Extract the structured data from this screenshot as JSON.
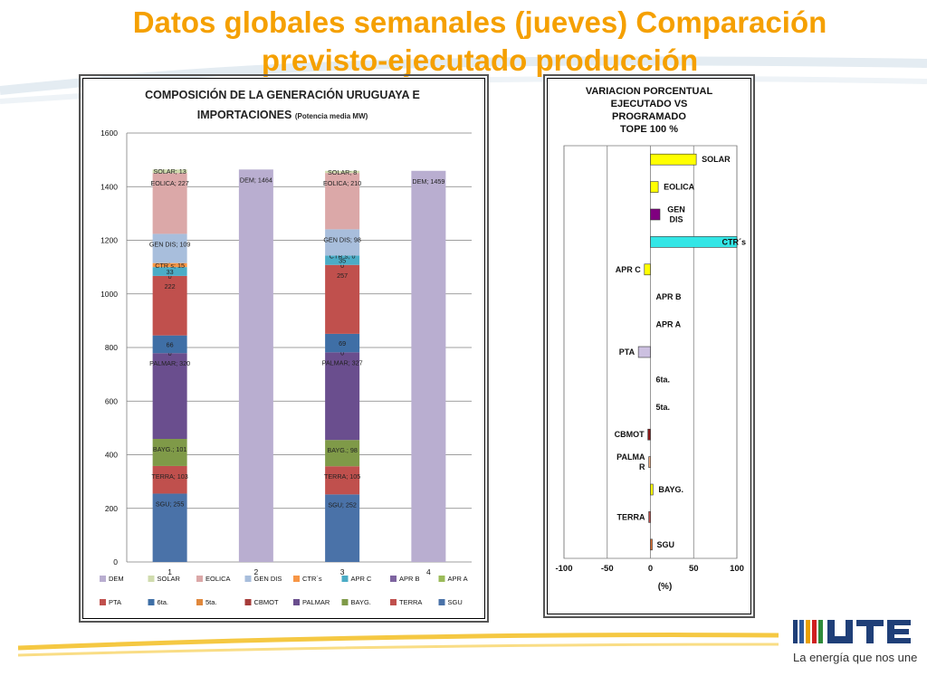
{
  "page": {
    "title_line1": "Datos globales semanales  (jueves) Comparación",
    "title_line2": "previsto-ejecutado producción",
    "slogan": "La energía que nos une",
    "colors": {
      "title": "#f5a000",
      "accent_line": "#f5c842"
    }
  },
  "chart_data": [
    {
      "type": "bar",
      "stacked": true,
      "title": "COMPOSICIÓN DE LA GENERACIÓN URUGUAYA E IMPORTACIONES",
      "title_line1": "COMPOSICIÓN DE LA GENERACIÓN URUGUAYA E",
      "title_line2": "IMPORTACIONES",
      "subtitle": "(Potencia media MW)",
      "categories": [
        "1",
        "2",
        "3",
        "4"
      ],
      "ylim": [
        0,
        1600
      ],
      "yticks": [
        "0",
        "200",
        "400",
        "600",
        "800",
        "1000",
        "1200",
        "1400",
        "1600"
      ],
      "ytick_values": [
        0,
        200,
        400,
        600,
        800,
        1000,
        1200,
        1400,
        1600
      ],
      "grid": true,
      "legend_position": "bottom",
      "series": [
        {
          "name": "SGU",
          "color": "#4a72a8",
          "values": [
            255,
            0,
            252,
            0
          ],
          "labels": [
            "SGU; 255",
            "",
            "SGU; 252",
            ""
          ]
        },
        {
          "name": "TERRA",
          "color": "#c0504d",
          "values": [
            103,
            0,
            105,
            0
          ],
          "labels": [
            "TERRA; 103",
            "",
            "TERRA; 105",
            ""
          ]
        },
        {
          "name": "BAYG.",
          "color": "#7f9a48",
          "values": [
            101,
            0,
            98,
            0
          ],
          "labels": [
            "BAYG.; 101",
            "",
            "BAYG.; 98",
            ""
          ]
        },
        {
          "name": "PALMAR",
          "color": "#6a4e8e",
          "values": [
            320,
            0,
            327,
            0
          ],
          "labels": [
            "PALMAR; 320",
            "",
            "PALMAR; 327",
            ""
          ]
        },
        {
          "name": "CBMOT",
          "color": "#a63c3a",
          "values": [
            0,
            0,
            0,
            0
          ],
          "labels": [
            "0",
            "",
            "0",
            ""
          ]
        },
        {
          "name": "5ta.",
          "color": "#e0883c",
          "values": [
            0,
            0,
            0,
            0
          ],
          "labels": [
            "",
            "",
            "",
            ""
          ]
        },
        {
          "name": "6ta.",
          "color": "#3f6fa6",
          "values": [
            66,
            0,
            69,
            0
          ],
          "labels": [
            "66",
            "",
            "69",
            ""
          ]
        },
        {
          "name": "PTA",
          "color": "#c0504d",
          "values": [
            222,
            0,
            257,
            0
          ],
          "labels": [
            "222",
            "",
            "257",
            ""
          ]
        },
        {
          "name": "APR A",
          "color": "#9bbb59",
          "values": [
            0,
            0,
            0,
            0
          ],
          "labels": [
            "0",
            "",
            "0",
            ""
          ]
        },
        {
          "name": "APR B",
          "color": "#7e64a0",
          "values": [
            0,
            0,
            0,
            0
          ],
          "labels": [
            "",
            "",
            "",
            ""
          ]
        },
        {
          "name": "APR C",
          "color": "#4bacc6",
          "values": [
            33,
            0,
            35,
            0
          ],
          "labels": [
            "33",
            "",
            "35",
            ""
          ]
        },
        {
          "name": "CTR´s",
          "color": "#f79646",
          "values": [
            15,
            0,
            0,
            0
          ],
          "labels": [
            "CTR´s; 15",
            "",
            "CTR´s; 0",
            ""
          ]
        },
        {
          "name": "GEN DIS",
          "color": "#a8bedc",
          "values": [
            109,
            0,
            98,
            0
          ],
          "labels": [
            "GEN DIS; 109",
            "",
            "GEN DIS; 98",
            ""
          ]
        },
        {
          "name": "EOLICA",
          "color": "#dba8a8",
          "values": [
            227,
            0,
            210,
            0
          ],
          "labels": [
            "EOLICA; 227",
            "",
            "EOLICA; 210",
            ""
          ]
        },
        {
          "name": "SOLAR",
          "color": "#d0dcae",
          "values": [
            13,
            0,
            8,
            0
          ],
          "labels": [
            "SOLAR; 13",
            "",
            "SOLAR; 8",
            ""
          ]
        },
        {
          "name": "DEM",
          "color": "#b9aed0",
          "values": [
            0,
            1464,
            0,
            1459
          ],
          "labels": [
            "",
            "DEM; 1464",
            "",
            "DEM; 1459"
          ]
        }
      ],
      "legend": [
        "DEM",
        "SOLAR",
        "EOLICA",
        "GEN DIS",
        "CTR´s",
        "APR C",
        "APR B",
        "APR A",
        "PTA",
        "6ta.",
        "5ta.",
        "CBMOT",
        "PALMAR",
        "BAYG.",
        "TERRA",
        "SGU"
      ]
    },
    {
      "type": "bar",
      "orientation": "horizontal",
      "title": "VARIACION PORCENTUAL EJECUTADO VS PROGRAMADO TOPE 100 %",
      "title_lines": [
        "VARIACION PORCENTUAL",
        "EJECUTADO VS",
        "PROGRAMADO",
        "TOPE 100 %"
      ],
      "xlabel": "(%)",
      "xlim": [
        -100,
        100
      ],
      "xticks": [
        "-100",
        "-50",
        "0",
        "50",
        "100"
      ],
      "xtick_values": [
        -100,
        -50,
        0,
        50,
        100
      ],
      "grid": true,
      "categories": [
        "SOLAR",
        "EOLICA",
        "GEN DIS",
        "CTR´s",
        "APR C",
        "APR B",
        "APR A",
        "PTA",
        "6ta.",
        "5ta.",
        "CBMOT",
        "PALMAR",
        "BAYG.",
        "TERRA",
        "SGU"
      ],
      "values": [
        53,
        9,
        11,
        100,
        -7,
        0,
        0,
        -14,
        0,
        0,
        -3,
        -2,
        3,
        -2,
        1
      ],
      "colors": [
        "#ffff00",
        "#ffff00",
        "#800080",
        "#33e6e6",
        "#ffff00",
        "#b0b0b0",
        "#b0b0b0",
        "#ccc0e0",
        "#b0b0b0",
        "#b0b0b0",
        "#8b1a1a",
        "#f4b183",
        "#ffff00",
        "#c0504d",
        "#e07030"
      ],
      "label_lines": [
        [
          "SOLAR"
        ],
        [
          "EOLICA"
        ],
        [
          "GEN",
          "DIS"
        ],
        [
          "CTR´s"
        ],
        [
          "APR C"
        ],
        [
          "APR B"
        ],
        [
          "APR A"
        ],
        [
          "PTA"
        ],
        [
          "6ta."
        ],
        [
          "5ta."
        ],
        [
          "CBMOT"
        ],
        [
          "PALMA",
          "R"
        ],
        [
          "BAYG."
        ],
        [
          "TERRA"
        ],
        [
          "SGU"
        ]
      ]
    }
  ]
}
